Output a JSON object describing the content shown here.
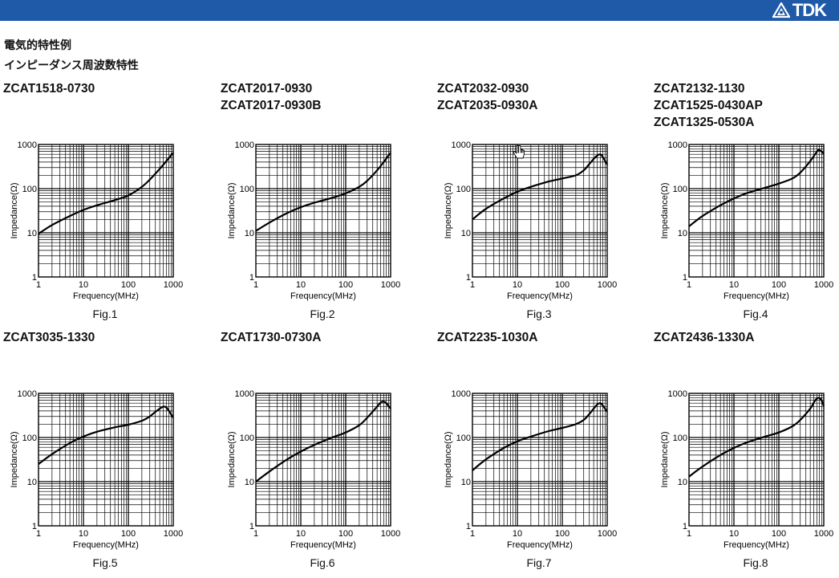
{
  "header": {
    "brand": "TDK",
    "logo_icon": "tdk-logo-icon",
    "color": "#1f5aa8"
  },
  "page": {
    "heading": "電気的特性例",
    "subheading": "インピーダンス周波数特性"
  },
  "cursor_icon": "hand-cursor-icon",
  "chart_data": [
    {
      "type": "line",
      "fig": "Fig.1",
      "models": [
        "ZCAT1518-0730"
      ],
      "xlabel": "Frequency(MHz)",
      "ylabel": "Impedance(Ω)",
      "xscale": "log",
      "yscale": "log",
      "xlim": [
        1,
        1000
      ],
      "ylim": [
        1,
        1000
      ],
      "x_ticks": [
        "1",
        "10",
        "100",
        "1000"
      ],
      "y_ticks": [
        "1",
        "10",
        "100",
        "1000"
      ],
      "grid": true,
      "series": [
        {
          "x": [
            1,
            2,
            5,
            10,
            20,
            50,
            100,
            200,
            300,
            500,
            700,
            1000
          ],
          "y": [
            9.5,
            15,
            24,
            33,
            42,
            55,
            70,
            110,
            160,
            280,
            420,
            650
          ]
        }
      ]
    },
    {
      "type": "line",
      "fig": "Fig.2",
      "models": [
        "ZCAT2017-0930",
        "ZCAT2017-0930B"
      ],
      "xlabel": "Frequency(MHz)",
      "ylabel": "Impedance(Ω)",
      "xscale": "log",
      "yscale": "log",
      "xlim": [
        1,
        1000
      ],
      "ylim": [
        1,
        1000
      ],
      "x_ticks": [
        "1",
        "10",
        "100",
        "1000"
      ],
      "y_ticks": [
        "1",
        "10",
        "100",
        "1000"
      ],
      "grid": true,
      "series": [
        {
          "x": [
            1,
            2,
            5,
            10,
            20,
            50,
            100,
            200,
            300,
            500,
            700,
            1000
          ],
          "y": [
            11,
            17,
            28,
            38,
            48,
            62,
            78,
            110,
            150,
            260,
            400,
            650
          ]
        }
      ]
    },
    {
      "type": "line",
      "fig": "Fig.3",
      "models": [
        "ZCAT2032-0930",
        "ZCAT2035-0930A"
      ],
      "xlabel": "Frequency(MHz)",
      "ylabel": "Impedance(Ω)",
      "xscale": "log",
      "yscale": "log",
      "xlim": [
        1,
        1000
      ],
      "ylim": [
        1,
        1000
      ],
      "x_ticks": [
        "1",
        "10",
        "100",
        "1000"
      ],
      "y_ticks": [
        "1",
        "10",
        "100",
        "1000"
      ],
      "grid": true,
      "series": [
        {
          "x": [
            1,
            2,
            5,
            10,
            20,
            50,
            100,
            200,
            300,
            400,
            500,
            600,
            700,
            800,
            1000
          ],
          "y": [
            20,
            35,
            60,
            85,
            110,
            145,
            170,
            200,
            260,
            360,
            470,
            560,
            600,
            520,
            350
          ]
        }
      ]
    },
    {
      "type": "line",
      "fig": "Fig.4",
      "models": [
        "ZCAT2132-1130",
        "ZCAT1525-0430AP",
        "ZCAT1325-0530A"
      ],
      "xlabel": "Frequency(MHz)",
      "ylabel": "Impedance(Ω)",
      "xscale": "log",
      "yscale": "log",
      "xlim": [
        1,
        1000
      ],
      "ylim": [
        1,
        1000
      ],
      "x_ticks": [
        "1",
        "10",
        "100",
        "1000"
      ],
      "y_ticks": [
        "1",
        "10",
        "100",
        "1000"
      ],
      "grid": true,
      "series": [
        {
          "x": [
            1,
            2,
            5,
            10,
            20,
            50,
            100,
            200,
            300,
            500,
            700,
            800,
            1000
          ],
          "y": [
            14,
            24,
            42,
            60,
            80,
            105,
            130,
            170,
            230,
            420,
            680,
            750,
            620
          ]
        }
      ]
    },
    {
      "type": "line",
      "fig": "Fig.5",
      "models": [
        "ZCAT3035-1330"
      ],
      "xlabel": "Frequency(MHz)",
      "ylabel": "Impedance(Ω)",
      "xscale": "log",
      "yscale": "log",
      "xlim": [
        1,
        1000
      ],
      "ylim": [
        1,
        1000
      ],
      "x_ticks": [
        "1",
        "10",
        "100",
        "1000"
      ],
      "y_ticks": [
        "1",
        "10",
        "100",
        "1000"
      ],
      "grid": true,
      "series": [
        {
          "x": [
            1,
            2,
            5,
            10,
            20,
            50,
            100,
            200,
            300,
            400,
            500,
            600,
            700,
            800,
            1000
          ],
          "y": [
            25,
            42,
            75,
            105,
            135,
            170,
            195,
            240,
            300,
            380,
            450,
            500,
            480,
            400,
            280
          ]
        }
      ]
    },
    {
      "type": "line",
      "fig": "Fig.6",
      "models": [
        "ZCAT1730-0730A"
      ],
      "xlabel": "Frequency(MHz)",
      "ylabel": "Impedance(Ω)",
      "xscale": "log",
      "yscale": "log",
      "xlim": [
        1,
        1000
      ],
      "ylim": [
        1,
        1000
      ],
      "x_ticks": [
        "1",
        "10",
        "100",
        "1000"
      ],
      "y_ticks": [
        "1",
        "10",
        "100",
        "1000"
      ],
      "grid": true,
      "series": [
        {
          "x": [
            1,
            2,
            5,
            10,
            20,
            50,
            100,
            200,
            300,
            500,
            600,
            700,
            800,
            1000
          ],
          "y": [
            10,
            17,
            32,
            48,
            68,
            100,
            130,
            190,
            280,
            500,
            620,
            650,
            600,
            450
          ]
        }
      ]
    },
    {
      "type": "line",
      "fig": "Fig.7",
      "models": [
        "ZCAT2235-1030A"
      ],
      "xlabel": "Frequency(MHz)",
      "ylabel": "Impedance(Ω)",
      "xscale": "log",
      "yscale": "log",
      "xlim": [
        1,
        1000
      ],
      "ylim": [
        1,
        1000
      ],
      "x_ticks": [
        "1",
        "10",
        "100",
        "1000"
      ],
      "y_ticks": [
        "1",
        "10",
        "100",
        "1000"
      ],
      "grid": true,
      "series": [
        {
          "x": [
            1,
            2,
            5,
            10,
            20,
            50,
            100,
            200,
            300,
            400,
            500,
            600,
            700,
            800,
            1000
          ],
          "y": [
            18,
            32,
            58,
            82,
            105,
            140,
            165,
            200,
            250,
            340,
            450,
            560,
            600,
            530,
            380
          ]
        }
      ]
    },
    {
      "type": "line",
      "fig": "Fig.8",
      "models": [
        "ZCAT2436-1330A"
      ],
      "xlabel": "Frequency(MHz)",
      "ylabel": "Impedance(Ω)",
      "xscale": "log",
      "yscale": "log",
      "xlim": [
        1,
        1000
      ],
      "ylim": [
        1,
        1000
      ],
      "x_ticks": [
        "1",
        "10",
        "100",
        "1000"
      ],
      "y_ticks": [
        "1",
        "10",
        "100",
        "1000"
      ],
      "grid": true,
      "series": [
        {
          "x": [
            1,
            2,
            5,
            10,
            20,
            50,
            100,
            200,
            300,
            500,
            600,
            700,
            800,
            900,
            1000
          ],
          "y": [
            13,
            22,
            40,
            58,
            78,
            105,
            130,
            180,
            250,
            450,
            620,
            760,
            790,
            680,
            520
          ]
        }
      ]
    }
  ]
}
